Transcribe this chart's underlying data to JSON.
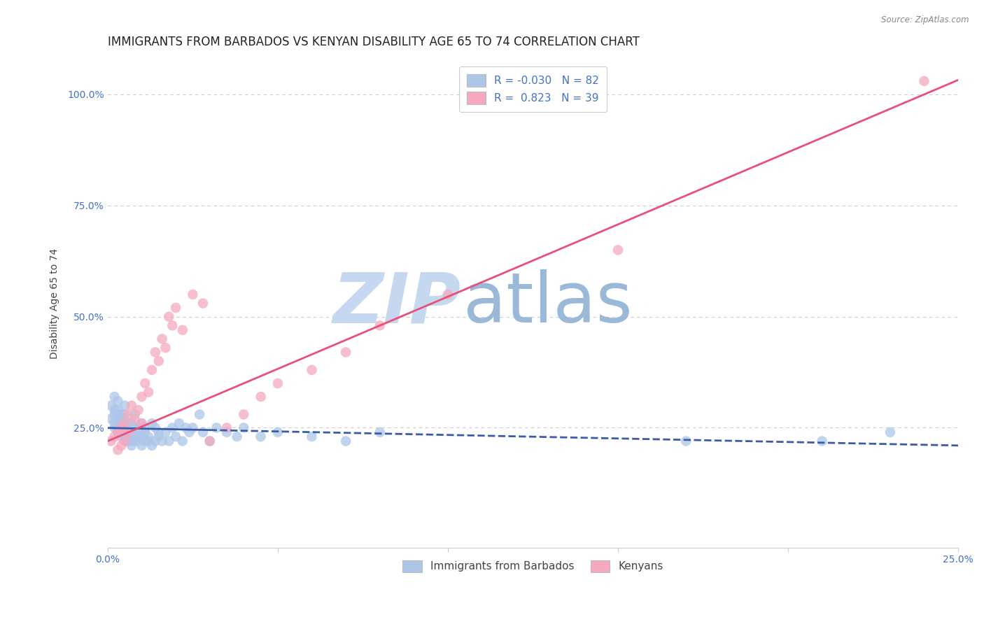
{
  "title": "IMMIGRANTS FROM BARBADOS VS KENYAN DISABILITY AGE 65 TO 74 CORRELATION CHART",
  "source": "Source: ZipAtlas.com",
  "ylabel": "Disability Age 65 to 74",
  "xlim": [
    0.0,
    0.25
  ],
  "ylim": [
    -0.02,
    1.08
  ],
  "xtick_positions": [
    0.0,
    0.05,
    0.1,
    0.15,
    0.2,
    0.25
  ],
  "xtick_labels": [
    "0.0%",
    "",
    "",
    "",
    "",
    "25.0%"
  ],
  "ytick_positions": [
    0.25,
    0.5,
    0.75,
    1.0
  ],
  "ytick_labels": [
    "25.0%",
    "50.0%",
    "75.0%",
    "100.0%"
  ],
  "legend_labels": [
    "Immigrants from Barbados",
    "Kenyans"
  ],
  "barbados_color": "#adc6e8",
  "kenyan_color": "#f5a8be",
  "barbados_line_color": "#3a5ca8",
  "kenyan_line_color": "#e8507a",
  "watermark1": "ZIP",
  "watermark2": "atlas",
  "r_barbados": -0.03,
  "n_barbados": 82,
  "r_kenyan": 0.823,
  "n_kenyan": 39,
  "barbados_scatter_x": [
    0.001,
    0.001,
    0.002,
    0.002,
    0.002,
    0.002,
    0.002,
    0.003,
    0.003,
    0.003,
    0.003,
    0.003,
    0.003,
    0.003,
    0.004,
    0.004,
    0.004,
    0.004,
    0.004,
    0.004,
    0.005,
    0.005,
    0.005,
    0.005,
    0.005,
    0.005,
    0.005,
    0.006,
    0.006,
    0.006,
    0.006,
    0.006,
    0.007,
    0.007,
    0.007,
    0.007,
    0.008,
    0.008,
    0.008,
    0.008,
    0.009,
    0.009,
    0.009,
    0.01,
    0.01,
    0.01,
    0.011,
    0.011,
    0.011,
    0.012,
    0.012,
    0.013,
    0.013,
    0.014,
    0.014,
    0.015,
    0.015,
    0.016,
    0.017,
    0.018,
    0.019,
    0.02,
    0.021,
    0.022,
    0.023,
    0.024,
    0.025,
    0.027,
    0.028,
    0.03,
    0.032,
    0.035,
    0.038,
    0.04,
    0.045,
    0.05,
    0.06,
    0.07,
    0.08,
    0.17,
    0.21,
    0.23
  ],
  "barbados_scatter_y": [
    0.27,
    0.3,
    0.28,
    0.29,
    0.25,
    0.26,
    0.32,
    0.24,
    0.25,
    0.26,
    0.27,
    0.28,
    0.29,
    0.31,
    0.23,
    0.24,
    0.25,
    0.26,
    0.28,
    0.27,
    0.22,
    0.23,
    0.24,
    0.25,
    0.26,
    0.28,
    0.3,
    0.22,
    0.23,
    0.24,
    0.26,
    0.25,
    0.21,
    0.22,
    0.24,
    0.26,
    0.22,
    0.24,
    0.28,
    0.25,
    0.22,
    0.23,
    0.25,
    0.21,
    0.23,
    0.26,
    0.22,
    0.24,
    0.25,
    0.22,
    0.23,
    0.21,
    0.26,
    0.22,
    0.25,
    0.23,
    0.24,
    0.22,
    0.24,
    0.22,
    0.25,
    0.23,
    0.26,
    0.22,
    0.25,
    0.24,
    0.25,
    0.28,
    0.24,
    0.22,
    0.25,
    0.24,
    0.23,
    0.25,
    0.23,
    0.24,
    0.23,
    0.22,
    0.24,
    0.22,
    0.22,
    0.24
  ],
  "kenyan_scatter_x": [
    0.001,
    0.002,
    0.003,
    0.003,
    0.004,
    0.004,
    0.005,
    0.005,
    0.006,
    0.006,
    0.007,
    0.008,
    0.009,
    0.01,
    0.01,
    0.011,
    0.012,
    0.013,
    0.014,
    0.015,
    0.016,
    0.017,
    0.018,
    0.019,
    0.02,
    0.022,
    0.025,
    0.028,
    0.03,
    0.035,
    0.04,
    0.045,
    0.05,
    0.06,
    0.07,
    0.08,
    0.1,
    0.15,
    0.24
  ],
  "kenyan_scatter_y": [
    0.22,
    0.23,
    0.24,
    0.2,
    0.25,
    0.21,
    0.26,
    0.22,
    0.28,
    0.24,
    0.3,
    0.27,
    0.29,
    0.26,
    0.32,
    0.35,
    0.33,
    0.38,
    0.42,
    0.4,
    0.45,
    0.43,
    0.5,
    0.48,
    0.52,
    0.47,
    0.55,
    0.53,
    0.22,
    0.25,
    0.28,
    0.32,
    0.35,
    0.38,
    0.42,
    0.48,
    0.55,
    0.65,
    1.03
  ],
  "grid_color": "#cccccc",
  "background_color": "#ffffff",
  "title_fontsize": 12,
  "axis_label_fontsize": 10,
  "tick_fontsize": 10,
  "watermark_color_zip": "#c5d8f0",
  "watermark_color_atlas": "#9ab8d8"
}
